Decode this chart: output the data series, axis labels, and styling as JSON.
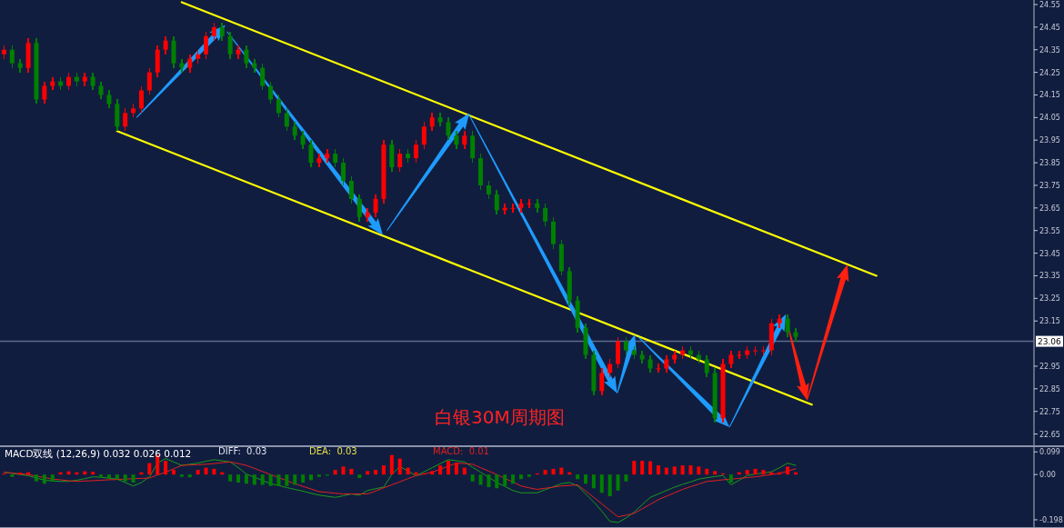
{
  "chart_data": [
    {
      "type": "candlestick",
      "categories": [
        null,
        null,
        null,
        null,
        null,
        null,
        null,
        null,
        null,
        null,
        null,
        null,
        null,
        null,
        null,
        null,
        null,
        null,
        null,
        null,
        null,
        null,
        null,
        null,
        null,
        null,
        null,
        null,
        null,
        null,
        null,
        null,
        null,
        null,
        null,
        null,
        null,
        null,
        null,
        null,
        null,
        null,
        null,
        null,
        null,
        null,
        null,
        null,
        null,
        null,
        null,
        null,
        null,
        null,
        null,
        null,
        null,
        null,
        null,
        null,
        null,
        null,
        null,
        null,
        null,
        null,
        null,
        null,
        null,
        null,
        null,
        null,
        null,
        null,
        null,
        null,
        null,
        null,
        null,
        null,
        null,
        null,
        null,
        null,
        null,
        null,
        null,
        null,
        null,
        null,
        null,
        null,
        null,
        null,
        null,
        null,
        null,
        null,
        null,
        null,
        null,
        null,
        null,
        null,
        null,
        null,
        null,
        null,
        null,
        null,
        null,
        null,
        null,
        null,
        null,
        null,
        null,
        null,
        null,
        null,
        null,
        null,
        null,
        null,
        null,
        null,
        null,
        null
      ],
      "ohlc": [
        [
          24.33,
          24.37,
          24.31,
          24.35
        ],
        [
          24.35,
          24.37,
          24.27,
          24.29
        ],
        [
          24.29,
          24.31,
          24.25,
          24.27
        ],
        [
          24.27,
          24.4,
          24.25,
          24.38
        ],
        [
          24.38,
          24.4,
          24.11,
          24.13
        ],
        [
          24.13,
          24.21,
          24.11,
          24.19
        ],
        [
          24.19,
          24.23,
          24.17,
          24.21
        ],
        [
          24.21,
          24.23,
          24.17,
          24.19
        ],
        [
          24.19,
          24.25,
          24.17,
          24.23
        ],
        [
          24.23,
          24.25,
          24.19,
          24.21
        ],
        [
          24.21,
          24.25,
          24.19,
          24.23
        ],
        [
          24.23,
          24.25,
          24.17,
          24.19
        ],
        [
          24.19,
          24.21,
          24.13,
          24.15
        ],
        [
          24.15,
          24.17,
          24.09,
          24.11
        ],
        [
          24.11,
          24.13,
          23.99,
          24.01
        ],
        [
          24.01,
          24.09,
          23.99,
          24.07
        ],
        [
          24.07,
          24.11,
          24.05,
          24.09
        ],
        [
          24.09,
          24.19,
          24.07,
          24.17
        ],
        [
          24.17,
          24.27,
          24.15,
          24.25
        ],
        [
          24.25,
          24.37,
          24.23,
          24.35
        ],
        [
          24.35,
          24.41,
          24.33,
          24.39
        ],
        [
          24.39,
          24.41,
          24.27,
          24.29
        ],
        [
          24.29,
          24.31,
          24.25,
          24.27
        ],
        [
          24.27,
          24.33,
          24.25,
          24.31
        ],
        [
          24.31,
          24.35,
          24.29,
          24.33
        ],
        [
          24.33,
          24.43,
          24.31,
          24.41
        ],
        [
          24.41,
          24.47,
          24.39,
          24.45
        ],
        [
          24.45,
          24.47,
          24.39,
          24.41
        ],
        [
          24.41,
          24.43,
          24.31,
          24.33
        ],
        [
          24.33,
          24.37,
          24.31,
          24.35
        ],
        [
          24.35,
          24.37,
          24.27,
          24.29
        ],
        [
          24.29,
          24.31,
          24.25,
          24.27
        ],
        [
          24.27,
          24.29,
          24.17,
          24.19
        ],
        [
          24.19,
          24.21,
          24.11,
          24.13
        ],
        [
          24.13,
          24.15,
          24.05,
          24.07
        ],
        [
          24.07,
          24.09,
          23.99,
          24.01
        ],
        [
          24.01,
          24.03,
          23.95,
          23.97
        ],
        [
          23.97,
          23.99,
          23.91,
          23.93
        ],
        [
          23.93,
          23.95,
          23.83,
          23.85
        ],
        [
          23.85,
          23.89,
          23.83,
          23.87
        ],
        [
          23.87,
          23.91,
          23.85,
          23.89
        ],
        [
          23.89,
          23.91,
          23.83,
          23.85
        ],
        [
          23.85,
          23.87,
          23.75,
          23.77
        ],
        [
          23.77,
          23.79,
          23.67,
          23.69
        ],
        [
          23.69,
          23.71,
          23.59,
          23.61
        ],
        [
          23.61,
          23.65,
          23.59,
          23.63
        ],
        [
          23.63,
          23.71,
          23.61,
          23.69
        ],
        [
          23.69,
          23.95,
          23.67,
          23.93
        ],
        [
          23.93,
          23.95,
          23.81,
          23.83
        ],
        [
          23.83,
          23.91,
          23.81,
          23.89
        ],
        [
          23.89,
          23.91,
          23.85,
          23.87
        ],
        [
          23.87,
          23.95,
          23.85,
          23.93
        ],
        [
          23.93,
          24.03,
          23.91,
          24.01
        ],
        [
          24.01,
          24.07,
          23.99,
          24.05
        ],
        [
          24.05,
          24.07,
          24.01,
          24.03
        ],
        [
          24.03,
          24.05,
          23.95,
          23.97
        ],
        [
          23.97,
          23.99,
          23.91,
          23.93
        ],
        [
          23.93,
          23.99,
          23.91,
          23.97
        ],
        [
          23.97,
          23.99,
          23.85,
          23.87
        ],
        [
          23.87,
          23.89,
          23.73,
          23.75
        ],
        [
          23.75,
          23.77,
          23.69,
          23.71
        ],
        [
          23.71,
          23.73,
          23.62,
          23.64
        ],
        [
          23.64,
          23.67,
          23.62,
          23.65
        ],
        [
          23.65,
          23.67,
          23.63,
          23.65
        ],
        [
          23.65,
          23.69,
          23.63,
          23.67
        ],
        [
          23.67,
          23.69,
          23.65,
          23.67
        ],
        [
          23.67,
          23.69,
          23.63,
          23.65
        ],
        [
          23.65,
          23.67,
          23.57,
          23.59
        ],
        [
          23.59,
          23.61,
          23.47,
          23.49
        ],
        [
          23.49,
          23.51,
          23.35,
          23.37
        ],
        [
          23.37,
          23.39,
          23.22,
          23.24
        ],
        [
          23.24,
          23.26,
          23.1,
          23.12
        ],
        [
          23.12,
          23.14,
          22.98,
          23.0
        ],
        [
          23.0,
          23.02,
          22.82,
          22.84
        ],
        [
          22.84,
          22.94,
          22.82,
          22.92
        ],
        [
          22.92,
          22.98,
          22.9,
          22.96
        ],
        [
          22.96,
          23.08,
          22.94,
          23.06
        ],
        [
          23.06,
          23.08,
          23.0,
          23.02
        ],
        [
          23.02,
          23.04,
          22.98,
          23.0
        ],
        [
          23.0,
          23.02,
          22.96,
          22.98
        ],
        [
          22.98,
          23.0,
          22.92,
          22.94
        ],
        [
          22.94,
          22.96,
          22.92,
          22.94
        ],
        [
          22.94,
          23.0,
          22.92,
          22.98
        ],
        [
          22.98,
          23.02,
          22.96,
          23.0
        ],
        [
          23.0,
          23.04,
          22.98,
          23.02
        ],
        [
          23.02,
          23.04,
          22.98,
          23.0
        ],
        [
          23.0,
          23.02,
          22.96,
          22.98
        ],
        [
          22.98,
          23.0,
          22.9,
          22.92
        ],
        [
          22.92,
          22.94,
          22.7,
          22.72
        ],
        [
          22.72,
          22.98,
          22.7,
          22.96
        ],
        [
          22.96,
          23.02,
          22.94,
          23.0
        ],
        [
          23.0,
          23.02,
          22.98,
          23.0
        ],
        [
          23.0,
          23.04,
          22.98,
          23.02
        ],
        [
          23.02,
          23.04,
          23.0,
          23.02
        ],
        [
          23.02,
          23.04,
          23.0,
          23.02
        ],
        [
          23.02,
          23.16,
          23.0,
          23.14
        ],
        [
          23.14,
          23.18,
          23.12,
          23.16
        ],
        [
          23.16,
          23.18,
          23.08,
          23.1
        ],
        [
          23.1,
          23.12,
          23.06,
          23.08
        ],
        null,
        null,
        null,
        null,
        null,
        null,
        null,
        null,
        null,
        null,
        null,
        null,
        null,
        null,
        null,
        null,
        null,
        null,
        null,
        null,
        null,
        null,
        null,
        null,
        null,
        null,
        null,
        null,
        null
      ],
      "series": [
        {
          "type": "line",
          "color": "#ffff00",
          "values": [
            null,
            null,
            null,
            null,
            null,
            null,
            null,
            null,
            null,
            null,
            null,
            null,
            null,
            null,
            null,
            null,
            null,
            null,
            null,
            null,
            null,
            null,
            24.56,
            null,
            null,
            null,
            null,
            null,
            null,
            null,
            null,
            null,
            null,
            null,
            null,
            null,
            null,
            null,
            null,
            null,
            null,
            null,
            null,
            null,
            null,
            null,
            null,
            null,
            null,
            null,
            null,
            null,
            null,
            null,
            null,
            null,
            null,
            null,
            null,
            null,
            null,
            null,
            null,
            null,
            null,
            null,
            null,
            null,
            null,
            null,
            null,
            null,
            null,
            null,
            null,
            null,
            null,
            null,
            null,
            null,
            null,
            null,
            null,
            null,
            null,
            null,
            null,
            null,
            null,
            null,
            null,
            null,
            null,
            null,
            null,
            null,
            null,
            null,
            null,
            null,
            null,
            null,
            null,
            null,
            null,
            null,
            null,
            null,
            23.35,
            null,
            null,
            null,
            null,
            null,
            null,
            null,
            null,
            null,
            null,
            null,
            null,
            null,
            null,
            null,
            null,
            null,
            null,
            null
          ]
        },
        {
          "type": "line",
          "color": "#ffff00",
          "values": [
            null,
            null,
            null,
            null,
            null,
            null,
            null,
            null,
            null,
            null,
            null,
            null,
            null,
            null,
            23.99,
            null,
            null,
            null,
            null,
            null,
            null,
            null,
            null,
            null,
            null,
            null,
            null,
            null,
            null,
            null,
            null,
            null,
            null,
            null,
            null,
            null,
            null,
            null,
            null,
            null,
            null,
            null,
            null,
            null,
            null,
            null,
            null,
            null,
            null,
            null,
            null,
            null,
            null,
            null,
            null,
            null,
            null,
            null,
            null,
            null,
            null,
            null,
            null,
            null,
            null,
            null,
            null,
            null,
            null,
            null,
            null,
            null,
            null,
            null,
            null,
            null,
            null,
            null,
            null,
            null,
            null,
            null,
            null,
            null,
            null,
            null,
            null,
            null,
            null,
            null,
            null,
            null,
            null,
            null,
            null,
            null,
            null,
            null,
            null,
            null,
            22.78,
            null,
            null,
            null,
            null,
            null,
            null,
            null,
            null,
            null,
            null,
            null,
            null,
            null,
            null,
            null,
            null,
            null,
            null,
            null,
            null,
            null,
            null,
            null,
            null,
            null,
            null,
            null
          ]
        }
      ],
      "ylim": [
        22.6,
        24.57
      ],
      "yticks": [
        22.65,
        22.75,
        22.85,
        22.95,
        23.15,
        23.25,
        23.35,
        23.45,
        23.55,
        23.65,
        23.75,
        23.85,
        23.95,
        24.05,
        24.15,
        24.25,
        24.35,
        24.45,
        24.55
      ],
      "ref_lines": [
        {
          "axis": "y",
          "value": 23.06,
          "label": "23.06",
          "color": "#5d6c8c"
        }
      ],
      "annotations": [
        "白银30M周期图"
      ]
    },
    {
      "type": "bar",
      "title": "MACD双线 (12,26,9) 0.032 0.026 0.012",
      "categories": [
        null,
        null,
        null,
        null,
        null,
        null,
        null,
        null,
        null,
        null,
        null,
        null,
        null,
        null,
        null,
        null,
        null,
        null,
        null,
        null,
        null,
        null,
        null,
        null,
        null,
        null,
        null,
        null,
        null,
        null,
        null,
        null,
        null,
        null,
        null,
        null,
        null,
        null,
        null,
        null,
        null,
        null,
        null,
        null,
        null,
        null,
        null,
        null,
        null,
        null,
        null,
        null,
        null,
        null,
        null,
        null,
        null,
        null,
        null,
        null,
        null,
        null,
        null,
        null,
        null,
        null,
        null,
        null,
        null,
        null,
        null,
        null,
        null,
        null,
        null,
        null,
        null,
        null,
        null,
        null,
        null,
        null,
        null,
        null,
        null,
        null,
        null,
        null,
        null,
        null,
        null,
        null,
        null,
        null,
        null,
        null,
        null,
        null,
        null,
        null,
        null,
        null,
        null,
        null,
        null,
        null,
        null,
        null,
        null,
        null,
        null,
        null,
        null,
        null,
        null,
        null,
        null,
        null,
        null,
        null,
        null,
        null,
        null,
        null,
        null,
        null,
        null,
        null
      ],
      "values": [
        0.004,
        -0.01,
        0.008,
        0.01,
        -0.03,
        -0.04,
        -0.03,
        0.01,
        0.014,
        0.01,
        0.014,
        0.012,
        -0.01,
        -0.015,
        -0.02,
        -0.03,
        -0.035,
        0.01,
        0.05,
        0.085,
        0.06,
        0.02,
        -0.01,
        -0.012,
        0.02,
        0.03,
        0.025,
        0.01,
        -0.03,
        -0.035,
        -0.04,
        -0.045,
        -0.045,
        -0.05,
        -0.05,
        -0.05,
        -0.045,
        -0.035,
        -0.025,
        -0.01,
        -0.005,
        0.02,
        0.035,
        0.025,
        -0.015,
        0.015,
        0.02,
        0.04,
        0.085,
        0.07,
        0.03,
        0.01,
        0.005,
        0.015,
        0.04,
        0.06,
        0.05,
        0.03,
        -0.03,
        -0.045,
        -0.055,
        -0.06,
        -0.05,
        -0.04,
        -0.02,
        -0.01,
        0.005,
        0.02,
        0.025,
        0.03,
        0.01,
        -0.02,
        -0.04,
        -0.06,
        -0.08,
        -0.095,
        -0.07,
        -0.03,
        0.06,
        0.06,
        0.058,
        0.04,
        0.03,
        0.035,
        0.04,
        0.04,
        0.035,
        0.025,
        0.015,
        0.005,
        -0.035,
        0.01,
        0.02,
        0.025,
        0.02,
        0.01,
        0.01,
        0.035,
        0.01,
        null,
        null,
        null,
        null,
        null,
        null,
        null,
        null,
        null,
        null,
        null,
        null,
        null,
        null,
        null,
        null,
        null,
        null,
        null,
        null,
        null,
        null,
        null,
        null,
        null,
        null,
        null,
        null,
        null
      ],
      "colors": [
        "#ff0000",
        "#008000",
        "#ff0000",
        "#ff0000",
        "#008000",
        "#008000",
        "#008000",
        "#ff0000",
        "#ff0000",
        "#ff0000",
        "#ff0000",
        "#ff0000",
        "#008000",
        "#008000",
        "#008000",
        "#008000",
        "#008000",
        "#ff0000",
        "#ff0000",
        "#ff0000",
        "#ff0000",
        "#ff0000",
        "#008000",
        "#008000",
        "#ff0000",
        "#ff0000",
        "#ff0000",
        "#ff0000",
        "#008000",
        "#008000",
        "#008000",
        "#008000",
        "#008000",
        "#008000",
        "#008000",
        "#008000",
        "#008000",
        "#008000",
        "#008000",
        "#008000",
        "#008000",
        "#ff0000",
        "#ff0000",
        "#ff0000",
        "#008000",
        "#ff0000",
        "#ff0000",
        "#ff0000",
        "#ff0000",
        "#ff0000",
        "#ff0000",
        "#ff0000",
        "#ff0000",
        "#ff0000",
        "#ff0000",
        "#ff0000",
        "#ff0000",
        "#ff0000",
        "#008000",
        "#008000",
        "#008000",
        "#008000",
        "#008000",
        "#008000",
        "#008000",
        "#008000",
        "#ff0000",
        "#ff0000",
        "#ff0000",
        "#ff0000",
        "#ff0000",
        "#008000",
        "#008000",
        "#008000",
        "#008000",
        "#008000",
        "#008000",
        "#008000",
        "#ff0000",
        "#ff0000",
        "#ff0000",
        "#ff0000",
        "#ff0000",
        "#ff0000",
        "#ff0000",
        "#ff0000",
        "#ff0000",
        "#ff0000",
        "#ff0000",
        "#ff0000",
        "#008000",
        "#ff0000",
        "#ff0000",
        "#ff0000",
        "#ff0000",
        "#ff0000",
        "#ff0000",
        "#ff0000",
        "#ff0000",
        null,
        null,
        null,
        null,
        null,
        null,
        null,
        null,
        null,
        null,
        null,
        null,
        null,
        null,
        null,
        null,
        null,
        null,
        null,
        null,
        null,
        null,
        null,
        null,
        null,
        null,
        null,
        null,
        null
      ],
      "series": [
        {
          "type": "line",
          "color": "#1a9a1a",
          "values": [
            0.01,
            0.005,
            0.0,
            -0.005,
            -0.015,
            -0.025,
            -0.028,
            -0.03,
            -0.03,
            -0.025,
            -0.018,
            -0.01,
            -0.012,
            -0.016,
            -0.02,
            -0.035,
            -0.05,
            -0.035,
            -0.01,
            0.05,
            0.07,
            0.055,
            0.04,
            0.045,
            0.05,
            0.058,
            0.065,
            0.06,
            0.055,
            0.03,
            0.002,
            -0.012,
            -0.026,
            -0.04,
            -0.048,
            -0.057,
            -0.065,
            -0.073,
            -0.082,
            -0.09,
            -0.095,
            -0.1,
            -0.093,
            -0.085,
            -0.09,
            -0.07,
            -0.062,
            -0.055,
            0.0,
            0.035,
            0.015,
            -0.005,
            0.012,
            0.03,
            0.048,
            0.065,
            0.06,
            0.055,
            0.032,
            0.01,
            -0.012,
            -0.035,
            -0.052,
            -0.07,
            -0.08,
            -0.08,
            -0.08,
            -0.066,
            -0.053,
            -0.04,
            -0.035,
            -0.05,
            -0.085,
            -0.12,
            -0.16,
            -0.205,
            -0.21,
            -0.19,
            -0.165,
            -0.132,
            -0.1,
            -0.085,
            -0.07,
            -0.055,
            -0.043,
            -0.032,
            -0.02,
            -0.014,
            -0.009,
            -0.004,
            -0.045,
            -0.025,
            -0.004,
            0.002,
            0.007,
            0.012,
            0.03,
            0.05,
            0.04,
            null,
            null,
            null,
            null,
            null,
            null,
            null,
            null,
            null,
            null,
            null,
            null,
            null,
            null,
            null,
            null,
            null,
            null,
            null,
            null,
            null,
            null,
            null,
            null,
            null,
            null,
            null,
            null,
            null
          ]
        },
        {
          "type": "line",
          "color": "#e02020",
          "values": [
            0.01,
            0.007,
            0.003,
            0.0,
            -0.007,
            -0.013,
            -0.02,
            -0.023,
            -0.027,
            -0.03,
            -0.028,
            -0.027,
            -0.025,
            -0.023,
            -0.022,
            -0.02,
            -0.018,
            -0.017,
            -0.015,
            -0.002,
            0.01,
            0.025,
            0.04,
            0.042,
            0.043,
            0.045,
            0.048,
            0.052,
            0.055,
            0.048,
            0.04,
            0.027,
            0.013,
            0.0,
            -0.013,
            -0.027,
            -0.04,
            -0.052,
            -0.063,
            -0.075,
            -0.078,
            -0.082,
            -0.085,
            -0.085,
            -0.085,
            -0.085,
            -0.072,
            -0.058,
            -0.045,
            -0.032,
            -0.018,
            -0.005,
            0.003,
            0.01,
            0.023,
            0.037,
            0.05,
            0.048,
            0.045,
            0.03,
            0.015,
            0.0,
            -0.017,
            -0.033,
            -0.05,
            -0.058,
            -0.065,
            -0.06,
            -0.055,
            -0.05,
            -0.048,
            -0.045,
            -0.072,
            -0.1,
            -0.128,
            -0.157,
            -0.185,
            -0.178,
            -0.17,
            -0.15,
            -0.13,
            -0.11,
            -0.095,
            -0.08,
            -0.065,
            -0.053,
            -0.042,
            -0.03,
            -0.027,
            -0.023,
            -0.02,
            -0.017,
            -0.013,
            -0.01,
            -0.005,
            0.0,
            0.005,
            0.015,
            0.025,
            null,
            null,
            null,
            null,
            null,
            null,
            null,
            null,
            null,
            null,
            null,
            null,
            null,
            null,
            null,
            null,
            null,
            null,
            null,
            null,
            null,
            null,
            null,
            null,
            null,
            null,
            null,
            null,
            null
          ]
        }
      ],
      "ylim": [
        -0.23,
        0.12
      ],
      "yticks": [
        -0.198,
        {
          "value": 0,
          "label": "0.00"
        },
        0.099
      ],
      "annotations": [
        "DIFF:  0.03",
        "DEA:  0.03",
        "MACD:  0.01"
      ]
    }
  ]
}
